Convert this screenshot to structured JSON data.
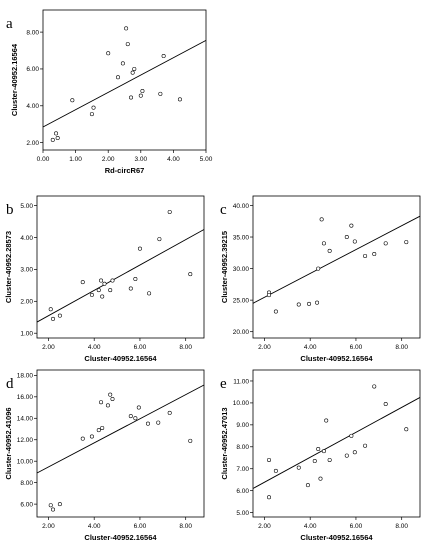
{
  "chart_data": [
    {
      "type": "scatter",
      "panel": "a",
      "xlabel": "Rd-circR67",
      "ylabel": "Cluster-40952.16564",
      "xlim": [
        0,
        5
      ],
      "ylim": [
        1.6,
        9.2
      ],
      "xticks": [
        "0.00",
        "1.00",
        "2.00",
        "3.00",
        "4.00",
        "5.00"
      ],
      "xtick_values": [
        0,
        1,
        2,
        3,
        4,
        5
      ],
      "yticks": [
        "2.00",
        "4.00",
        "6.00",
        "8.00"
      ],
      "ytick_values": [
        2,
        4,
        6,
        8
      ],
      "fit_line": [
        [
          0,
          2.85
        ],
        [
          5,
          7.55
        ]
      ],
      "points": [
        [
          0.3,
          2.15
        ],
        [
          0.4,
          2.5
        ],
        [
          0.45,
          2.25
        ],
        [
          0.9,
          4.3
        ],
        [
          1.5,
          3.55
        ],
        [
          1.55,
          3.9
        ],
        [
          2.0,
          6.85
        ],
        [
          2.3,
          5.55
        ],
        [
          2.45,
          6.3
        ],
        [
          2.55,
          8.2
        ],
        [
          2.6,
          7.35
        ],
        [
          2.7,
          4.45
        ],
        [
          2.75,
          5.8
        ],
        [
          2.8,
          6.0
        ],
        [
          3.0,
          4.55
        ],
        [
          3.05,
          4.8
        ],
        [
          3.6,
          4.65
        ],
        [
          3.7,
          6.7
        ],
        [
          4.2,
          4.35
        ]
      ]
    },
    {
      "type": "scatter",
      "panel": "b",
      "xlabel": "Cluster-40952.16564",
      "ylabel": "Cluster-40952.28573",
      "xlim": [
        1.5,
        8.8
      ],
      "ylim": [
        0.85,
        5.3
      ],
      "xticks": [
        "2.00",
        "4.00",
        "6.00",
        "8.00"
      ],
      "xtick_values": [
        2,
        4,
        6,
        8
      ],
      "yticks": [
        "1.00",
        "2.00",
        "3.00",
        "4.00",
        "5.00"
      ],
      "ytick_values": [
        1,
        2,
        3,
        4,
        5
      ],
      "fit_line": [
        [
          1.5,
          1.35
        ],
        [
          8.8,
          4.25
        ]
      ],
      "points": [
        [
          2.1,
          1.75
        ],
        [
          2.2,
          1.45
        ],
        [
          2.5,
          1.55
        ],
        [
          3.5,
          2.6
        ],
        [
          3.9,
          2.2
        ],
        [
          4.2,
          2.35
        ],
        [
          4.3,
          2.65
        ],
        [
          4.35,
          2.15
        ],
        [
          4.45,
          2.55
        ],
        [
          4.7,
          2.35
        ],
        [
          4.8,
          2.65
        ],
        [
          5.6,
          2.4
        ],
        [
          5.8,
          2.7
        ],
        [
          6.0,
          3.65
        ],
        [
          6.4,
          2.25
        ],
        [
          6.85,
          3.95
        ],
        [
          7.3,
          4.8
        ],
        [
          8.2,
          2.85
        ]
      ]
    },
    {
      "type": "scatter",
      "panel": "c",
      "xlabel": "Cluster-40952.16564",
      "ylabel": "Cluster-40952.39215",
      "xlim": [
        1.5,
        8.8
      ],
      "ylim": [
        19,
        41.5
      ],
      "xticks": [
        "2.00",
        "4.00",
        "6.00",
        "8.00"
      ],
      "xtick_values": [
        2,
        4,
        6,
        8
      ],
      "yticks": [
        "20.00",
        "25.00",
        "30.00",
        "35.00",
        "40.00"
      ],
      "ytick_values": [
        20,
        25,
        30,
        35,
        40
      ],
      "fit_line": [
        [
          1.5,
          24.5
        ],
        [
          8.8,
          38.3
        ]
      ],
      "points": [
        [
          2.2,
          26.2
        ],
        [
          2.2,
          25.8
        ],
        [
          2.5,
          23.2
        ],
        [
          3.5,
          24.3
        ],
        [
          3.95,
          24.4
        ],
        [
          4.3,
          24.6
        ],
        [
          4.35,
          30.0
        ],
        [
          4.5,
          37.8
        ],
        [
          4.6,
          34.0
        ],
        [
          4.85,
          32.8
        ],
        [
          5.6,
          35.0
        ],
        [
          5.8,
          36.8
        ],
        [
          5.95,
          34.3
        ],
        [
          6.4,
          32.0
        ],
        [
          6.8,
          32.3
        ],
        [
          7.3,
          34.0
        ],
        [
          8.2,
          34.2
        ]
      ]
    },
    {
      "type": "scatter",
      "panel": "d",
      "xlabel": "Cluster-40952.16564",
      "ylabel": "Cluster-40952.41096",
      "xlim": [
        1.5,
        8.8
      ],
      "ylim": [
        4.8,
        18.5
      ],
      "xticks": [
        "2.00",
        "4.00",
        "6.00",
        "8.00"
      ],
      "xtick_values": [
        2,
        4,
        6,
        8
      ],
      "yticks": [
        "6.00",
        "8.00",
        "10.00",
        "12.00",
        "14.00",
        "16.00",
        "18.00"
      ],
      "ytick_values": [
        6,
        8,
        10,
        12,
        14,
        16,
        18
      ],
      "fit_line": [
        [
          1.5,
          8.9
        ],
        [
          8.8,
          17.1
        ]
      ],
      "points": [
        [
          2.1,
          5.9
        ],
        [
          2.2,
          5.5
        ],
        [
          2.5,
          6.0
        ],
        [
          3.5,
          12.1
        ],
        [
          3.9,
          12.3
        ],
        [
          4.2,
          12.9
        ],
        [
          4.3,
          15.5
        ],
        [
          4.35,
          13.1
        ],
        [
          4.6,
          15.2
        ],
        [
          4.7,
          16.2
        ],
        [
          4.8,
          15.8
        ],
        [
          5.6,
          14.2
        ],
        [
          5.8,
          14.0
        ],
        [
          5.95,
          15.0
        ],
        [
          6.35,
          13.5
        ],
        [
          6.8,
          13.6
        ],
        [
          7.3,
          14.5
        ],
        [
          8.2,
          11.9
        ]
      ]
    },
    {
      "type": "scatter",
      "panel": "e",
      "xlabel": "Cluster-40952.16564",
      "ylabel": "Cluster-40952.47013",
      "xlim": [
        1.5,
        8.8
      ],
      "ylim": [
        4.8,
        11.5
      ],
      "xticks": [
        "2.00",
        "4.00",
        "6.00",
        "8.00"
      ],
      "xtick_values": [
        2,
        4,
        6,
        8
      ],
      "yticks": [
        "5.00",
        "6.00",
        "7.00",
        "8.00",
        "9.00",
        "10.00",
        "11.00"
      ],
      "ytick_values": [
        5,
        6,
        7,
        8,
        9,
        10,
        11
      ],
      "fit_line": [
        [
          1.5,
          6.1
        ],
        [
          8.8,
          10.25
        ]
      ],
      "points": [
        [
          2.2,
          7.4
        ],
        [
          2.2,
          5.7
        ],
        [
          2.5,
          6.9
        ],
        [
          3.5,
          7.05
        ],
        [
          3.9,
          6.25
        ],
        [
          4.2,
          7.35
        ],
        [
          4.35,
          7.9
        ],
        [
          4.45,
          6.55
        ],
        [
          4.6,
          7.8
        ],
        [
          4.7,
          9.2
        ],
        [
          4.85,
          7.4
        ],
        [
          5.6,
          7.6
        ],
        [
          5.8,
          8.5
        ],
        [
          5.95,
          7.75
        ],
        [
          6.4,
          8.05
        ],
        [
          6.8,
          10.75
        ],
        [
          7.3,
          9.95
        ],
        [
          8.2,
          8.8
        ]
      ]
    }
  ]
}
